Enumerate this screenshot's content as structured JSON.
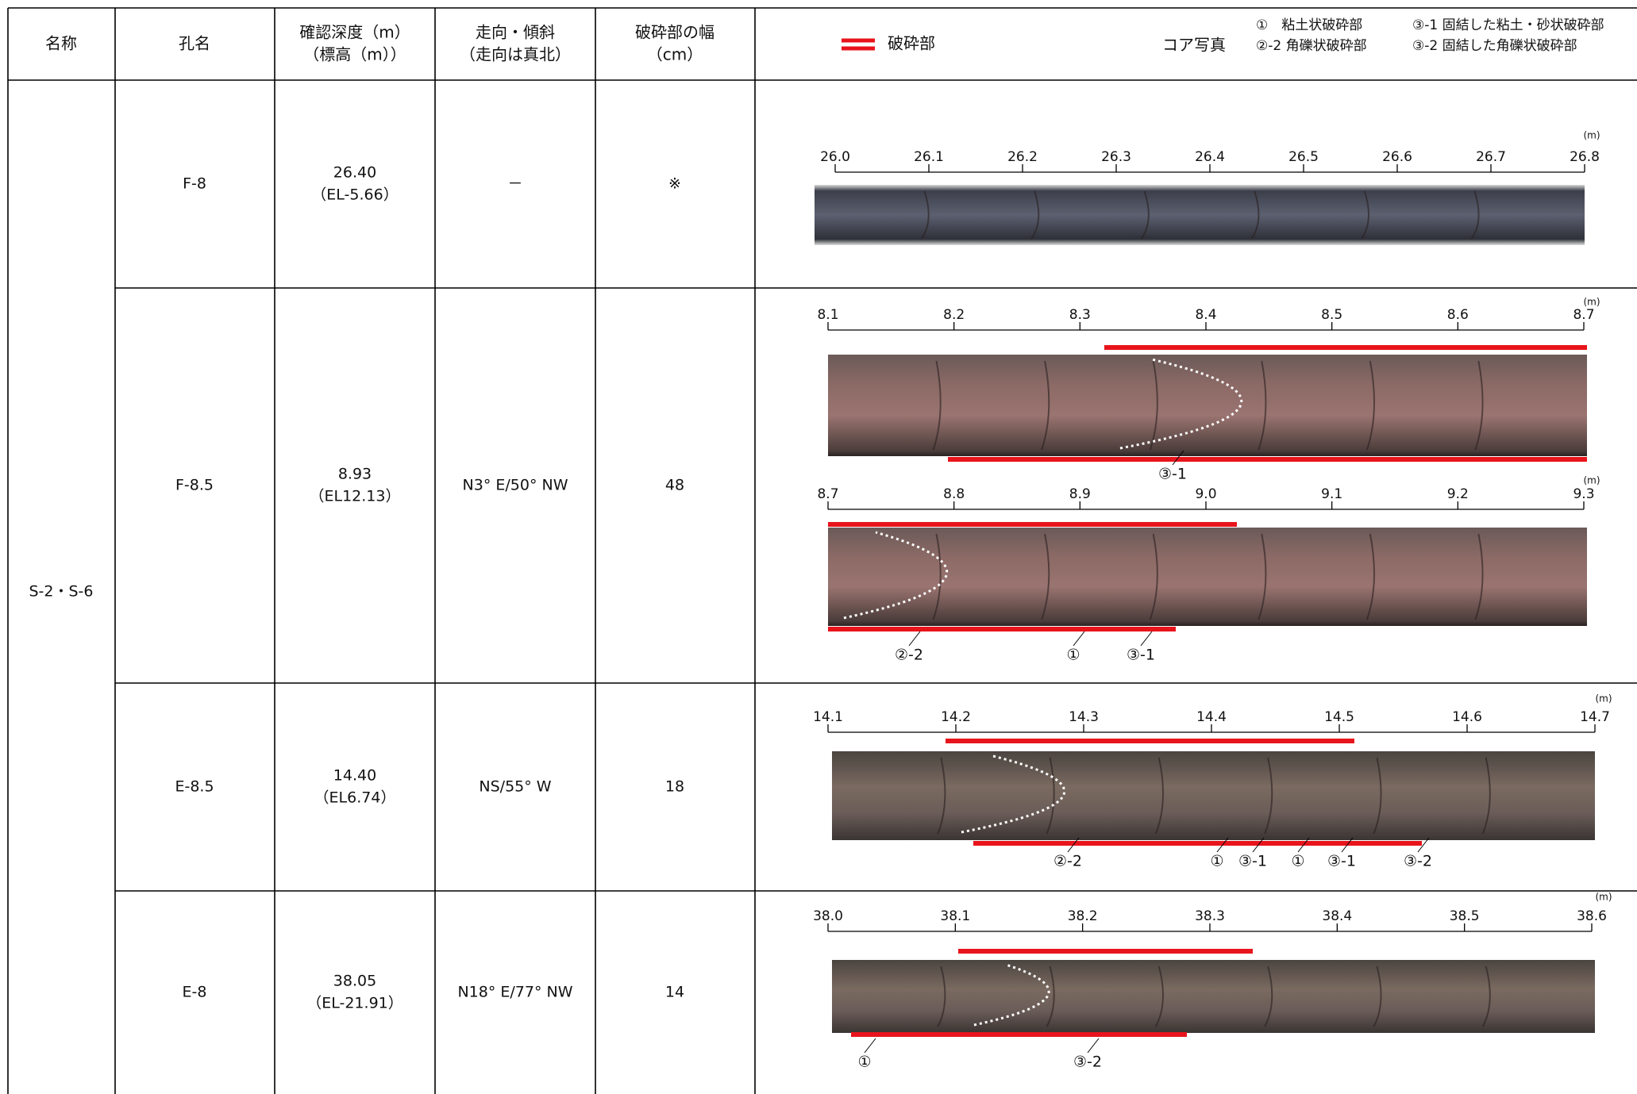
{
  "header": {
    "columns": [
      [
        "名称"
      ],
      [
        "孔名"
      ],
      [
        "確認深度（m）",
        "（標高（m））"
      ],
      [
        "走向・傾斜",
        "（走向は真北）"
      ],
      [
        "破砕部の幅",
        "（cm）"
      ]
    ],
    "legend_label": "破砕部",
    "photo_label": "コア写真",
    "notes": [
      [
        "①　粘土状破砕部",
        "③-1 固結した粘土・砂状破砕部"
      ],
      [
        "②-2 角礫状破砕部",
        "③-2 固結した角礫状破砕部"
      ]
    ]
  },
  "table": {
    "group": "S-2・S-6",
    "rows": [
      {
        "hole": "F-8",
        "depth": "26.40",
        "elevation": "（EL-5.66）",
        "strike_dip": "－",
        "width": "※",
        "photos": [
          {
            "unit": "(m)",
            "scale": [
              "26.0",
              "26.1",
              "26.2",
              "26.3",
              "26.4",
              "26.5",
              "26.6",
              "26.7",
              "26.8"
            ],
            "callouts": []
          }
        ]
      },
      {
        "hole": "F-8.5",
        "depth": "8.93",
        "elevation": "（EL12.13）",
        "strike_dip": "N3° E/50° NW",
        "width": "48",
        "photos": [
          {
            "unit": "(m)",
            "scale": [
              "8.1",
              "8.2",
              "8.3",
              "8.4",
              "8.5",
              "8.6",
              "8.7"
            ],
            "callouts": [
              "③-1"
            ]
          },
          {
            "unit": "(m)",
            "scale": [
              "8.7",
              "8.8",
              "8.9",
              "9.0",
              "9.1",
              "9.2",
              "9.3"
            ],
            "callouts": [
              "②-2",
              "①",
              "③-1"
            ]
          }
        ]
      },
      {
        "hole": "E-8.5",
        "depth": "14.40",
        "elevation": "（EL6.74）",
        "strike_dip": "NS/55° W",
        "width": "18",
        "photos": [
          {
            "unit": "(m)",
            "scale": [
              "14.1",
              "14.2",
              "14.3",
              "14.4",
              "14.5",
              "14.6",
              "14.7"
            ],
            "callouts": [
              "②-2",
              "①",
              "③-1",
              "①",
              "③-1",
              "③-2"
            ]
          }
        ]
      },
      {
        "hole": "E-8",
        "depth": "38.05",
        "elevation": "（EL-21.91）",
        "strike_dip": "N18° E/77° NW",
        "width": "14",
        "photos": [
          {
            "unit": "(m)",
            "scale": [
              "38.0",
              "38.1",
              "38.2",
              "38.3",
              "38.4",
              "38.5",
              "38.6"
            ],
            "callouts": [
              "①",
              "③-2"
            ]
          }
        ]
      }
    ]
  }
}
